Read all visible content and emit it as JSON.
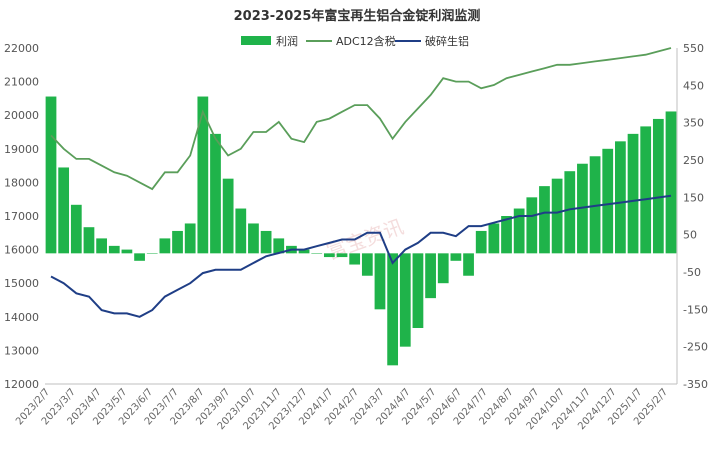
{
  "chart_data": {
    "type": "line",
    "title": "2023-2025年富宝再生铝合金锭利润监测",
    "watermark": "富宝资讯",
    "colors": {
      "profit": "#1fb34a",
      "adc12": "#5a9e5a",
      "scrap": "#1f3e86"
    },
    "legend": {
      "position": "top",
      "entries": [
        "利润",
        "ADC12含税",
        "破碎生铝"
      ]
    },
    "y_left": {
      "min": 12000,
      "max": 22000,
      "ticks": [
        "12000",
        "13000",
        "14000",
        "15000",
        "16000",
        "17000",
        "18000",
        "19000",
        "20000",
        "21000",
        "22000"
      ]
    },
    "y_right": {
      "min": -350,
      "max": 550,
      "ticks": [
        "-350",
        "-250",
        "-150",
        "-50",
        "50",
        "150",
        "250",
        "350",
        "450",
        "550"
      ]
    },
    "x_ticks": [
      "2023/2/7",
      "2023/3/7",
      "2023/4/7",
      "2023/5/7",
      "2023/6/7",
      "2023/7/7",
      "2023/8/7",
      "2023/9/7",
      "2023/10/7",
      "2023/11/7",
      "2023/12/7",
      "2024/1/7",
      "2024/2/7",
      "2024/3/7",
      "2024/4/7",
      "2024/5/7",
      "2024/6/7",
      "2024/7/7",
      "2024/8/7",
      "2024/9/7",
      "2024/10/7",
      "2024/11/7",
      "2024/12/7",
      "2025/1/7",
      "2025/2/7"
    ],
    "series": [
      {
        "name": "ADC12含税",
        "axis": "left",
        "values": [
          19400,
          19000,
          18700,
          18700,
          18500,
          18300,
          18200,
          18000,
          17800,
          18300,
          18300,
          18800,
          20100,
          19300,
          18800,
          19000,
          19500,
          19500,
          19800,
          19300,
          19200,
          19800,
          19900,
          20100,
          20300,
          20300,
          19900,
          19300,
          19800,
          20200,
          20600,
          21100,
          21000,
          21000,
          20800,
          20900,
          21100,
          21200,
          21300,
          21400,
          21500,
          21500,
          21550,
          21600,
          21650,
          21700,
          21750,
          21800,
          21900,
          22000
        ]
      },
      {
        "name": "破碎生铝",
        "axis": "left",
        "values": [
          15200,
          15000,
          14700,
          14600,
          14200,
          14100,
          14100,
          14000,
          14200,
          14600,
          14800,
          15000,
          15300,
          15400,
          15400,
          15400,
          15600,
          15800,
          15900,
          16000,
          16000,
          16100,
          16200,
          16300,
          16300,
          16500,
          16500,
          15600,
          16000,
          16200,
          16500,
          16500,
          16400,
          16700,
          16700,
          16800,
          16900,
          17000,
          17000,
          17100,
          17100,
          17200,
          17250,
          17300,
          17350,
          17400,
          17450,
          17500,
          17550,
          17600
        ]
      },
      {
        "name": "利润",
        "axis": "right",
        "values": [
          420,
          230,
          130,
          70,
          40,
          20,
          10,
          -20,
          0,
          40,
          60,
          80,
          420,
          320,
          200,
          120,
          80,
          60,
          40,
          20,
          10,
          0,
          -10,
          -10,
          -30,
          -60,
          -150,
          -300,
          -250,
          -200,
          -120,
          -80,
          -20,
          -60,
          60,
          80,
          100,
          120,
          150,
          180,
          200,
          220,
          240,
          260,
          280,
          300,
          320,
          340,
          360,
          380
        ]
      }
    ]
  }
}
